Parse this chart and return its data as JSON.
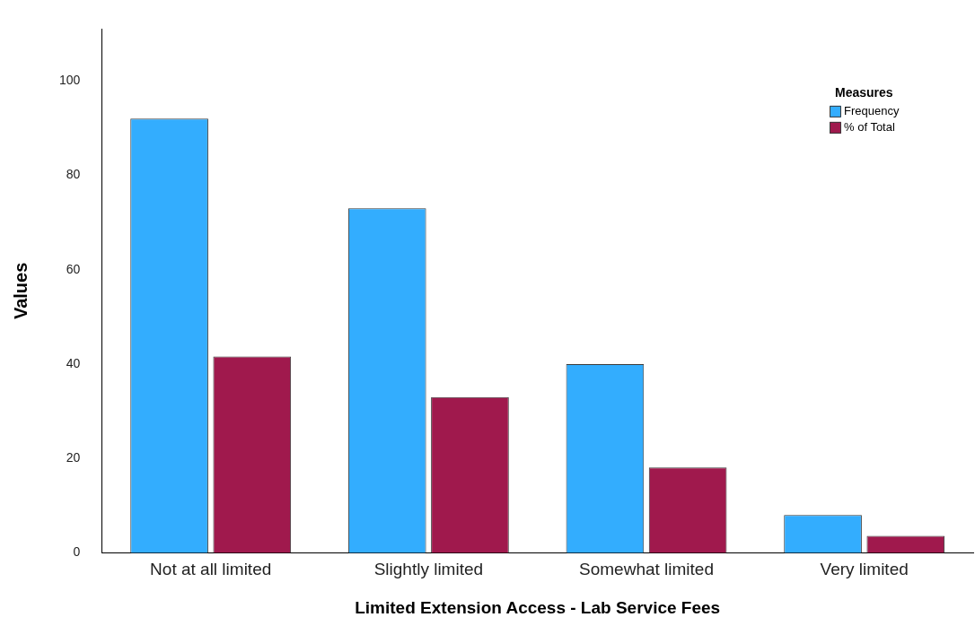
{
  "chart_data": {
    "type": "bar",
    "xlabel": "Limited Extension Access - Lab Service Fees",
    "ylabel": "Values",
    "legend_title": "Measures",
    "categories": [
      "Not at all limited",
      "Slightly limited",
      "Somewhat limited",
      "Very limited"
    ],
    "series": [
      {
        "name": "Frequency",
        "color": "#33adfe",
        "values": [
          92,
          73,
          40,
          8
        ]
      },
      {
        "name": "% of Total",
        "color": "#a0194d",
        "values": [
          41.6,
          33.0,
          18.1,
          3.6
        ]
      }
    ],
    "ylim": [
      0,
      111
    ],
    "yticks": [
      0,
      20,
      40,
      60,
      80,
      100
    ],
    "grid": false,
    "legend": "top right"
  }
}
